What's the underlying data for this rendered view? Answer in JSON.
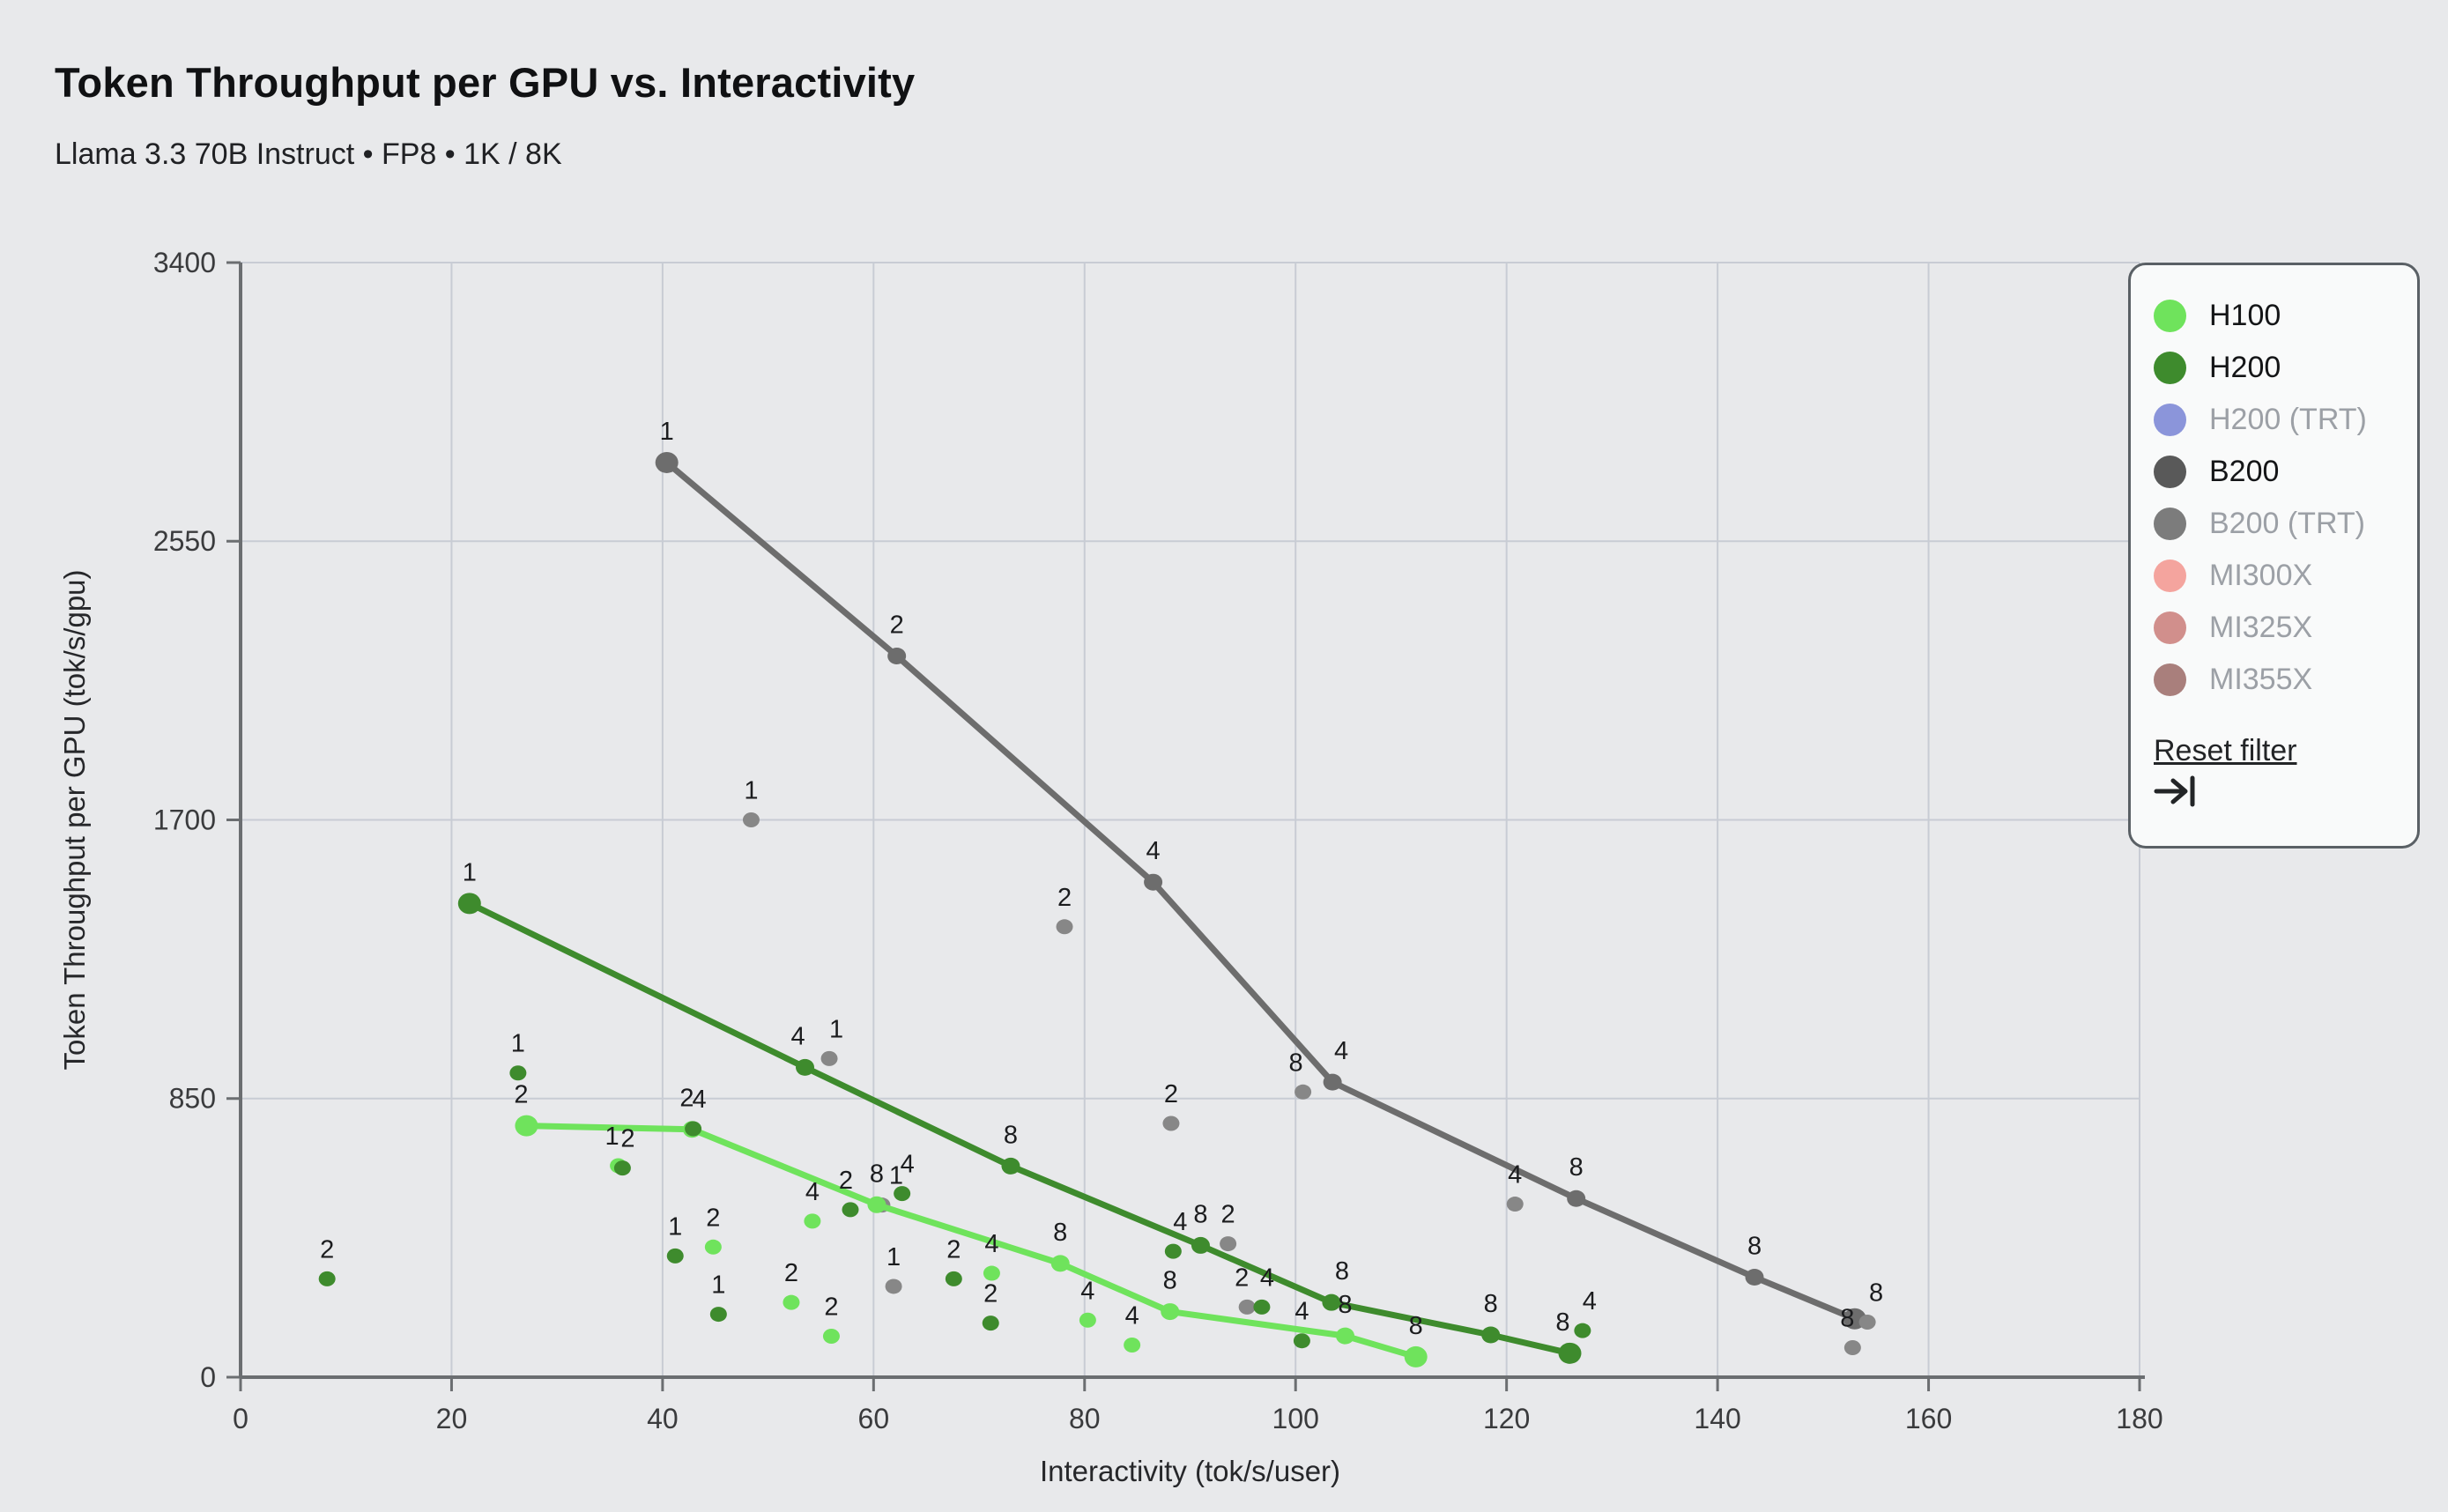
{
  "header": {
    "title": "Token Throughput per GPU vs. Interactivity",
    "subtitle": "Llama 3.3 70B Instruct • FP8 • 1K / 8K"
  },
  "legend": {
    "reset_label": "Reset filter",
    "reset_icon": "tab-arrow-right-to-bar",
    "items": [
      {
        "label": "H100",
        "color": "#6fe35c",
        "active": true
      },
      {
        "label": "H200",
        "color": "#3e8b2d",
        "active": true
      },
      {
        "label": "H200 (TRT)",
        "color": "#8b95da",
        "active": false
      },
      {
        "label": "B200",
        "color": "#595959",
        "active": true
      },
      {
        "label": "B200 (TRT)",
        "color": "#7c7c7c",
        "active": false
      },
      {
        "label": "MI300X",
        "color": "#f4a49e",
        "active": false
      },
      {
        "label": "MI325X",
        "color": "#d18f8c",
        "active": false
      },
      {
        "label": "MI355X",
        "color": "#a97f7c",
        "active": false
      }
    ]
  },
  "chart_data": {
    "type": "scatter",
    "title": "Token Throughput per GPU vs. Interactivity",
    "xlabel": "Interactivity (tok/s/user)",
    "ylabel": "Token Throughput per GPU (tok/s/gpu)",
    "xlim": [
      0,
      180
    ],
    "ylim": [
      0,
      3400
    ],
    "xticks": [
      0,
      20,
      40,
      60,
      80,
      100,
      120,
      140,
      160,
      180
    ],
    "yticks": [
      0,
      850,
      1700,
      2550,
      3400
    ],
    "grid": true,
    "legend_position": "top-right",
    "point_label_meaning": "number shown above each point (GPU count: 1, 2, 4 or 8)",
    "draw_order": [
      "B200",
      "H100",
      "H200"
    ],
    "series": [
      {
        "name": "H100",
        "color": "#6fe35c",
        "scatter_color": "#6fe35c",
        "pareto_line": [
          {
            "x": 27.1,
            "y": 767,
            "label": "2",
            "ldx": -6
          },
          {
            "x": 42.8,
            "y": 756,
            "label": "2",
            "ldx": -6
          },
          {
            "x": 60.3,
            "y": 526,
            "label": "8"
          },
          {
            "x": 77.7,
            "y": 347,
            "label": "8"
          },
          {
            "x": 88.1,
            "y": 200,
            "label": "8"
          },
          {
            "x": 104.7,
            "y": 126,
            "label": "8"
          },
          {
            "x": 111.4,
            "y": 62,
            "label": "8"
          }
        ],
        "scatter": [
          {
            "x": 35.8,
            "y": 645,
            "label": "1",
            "ldx": -7
          },
          {
            "x": 44.8,
            "y": 397,
            "label": "2"
          },
          {
            "x": 52.2,
            "y": 228,
            "label": "2"
          },
          {
            "x": 54.2,
            "y": 476,
            "label": "4"
          },
          {
            "x": 56.0,
            "y": 125,
            "label": "2"
          },
          {
            "x": 71.2,
            "y": 317,
            "label": "4"
          },
          {
            "x": 80.3,
            "y": 174,
            "label": "4"
          },
          {
            "x": 84.5,
            "y": 98,
            "label": "4"
          }
        ]
      },
      {
        "name": "H200",
        "color": "#3e8b2d",
        "scatter_color": "#3e8b2d",
        "pareto_line": [
          {
            "x": 21.7,
            "y": 1445,
            "label": "1"
          },
          {
            "x": 53.5,
            "y": 945,
            "label": "4",
            "ldx": -8
          },
          {
            "x": 73.0,
            "y": 644,
            "label": "8"
          },
          {
            "x": 91.0,
            "y": 402,
            "label": "8"
          },
          {
            "x": 103.4,
            "y": 228,
            "label": "8",
            "ldx": 12
          },
          {
            "x": 118.5,
            "y": 129,
            "label": "8"
          },
          {
            "x": 126.0,
            "y": 73,
            "label": "8",
            "ldx": -8
          }
        ],
        "scatter": [
          {
            "x": 8.2,
            "y": 300,
            "label": "2"
          },
          {
            "x": 26.3,
            "y": 928,
            "label": "1"
          },
          {
            "x": 36.2,
            "y": 638,
            "label": "2",
            "ldx": 6
          },
          {
            "x": 41.2,
            "y": 370,
            "label": "1"
          },
          {
            "x": 42.9,
            "y": 758,
            "label": "4",
            "ldx": 7
          },
          {
            "x": 45.3,
            "y": 192,
            "label": "1"
          },
          {
            "x": 57.8,
            "y": 511,
            "label": "2",
            "ldx": -5
          },
          {
            "x": 62.7,
            "y": 560,
            "label": "4",
            "ldx": 6
          },
          {
            "x": 67.6,
            "y": 300,
            "label": "2"
          },
          {
            "x": 71.1,
            "y": 165,
            "label": "2"
          },
          {
            "x": 88.4,
            "y": 384,
            "label": "4",
            "ldx": 8
          },
          {
            "x": 96.8,
            "y": 214,
            "label": "4",
            "ldx": 6
          },
          {
            "x": 100.6,
            "y": 111,
            "label": "4"
          },
          {
            "x": 127.2,
            "y": 142,
            "label": "4",
            "ldx": 8
          }
        ]
      },
      {
        "name": "B200",
        "color": "#6d6d6d",
        "scatter_color": "#878787",
        "pareto_line": [
          {
            "x": 40.4,
            "y": 2790,
            "label": "1"
          },
          {
            "x": 62.2,
            "y": 2200,
            "label": "2"
          },
          {
            "x": 86.5,
            "y": 1510,
            "label": "4"
          },
          {
            "x": 103.5,
            "y": 900,
            "label": "4",
            "ldx": 10
          },
          {
            "x": 126.6,
            "y": 545,
            "label": "8"
          },
          {
            "x": 143.5,
            "y": 305,
            "label": "8"
          },
          {
            "x": 153.0,
            "y": 178,
            "label": ""
          }
        ],
        "scatter": [
          {
            "x": 48.4,
            "y": 1700,
            "label": "1"
          },
          {
            "x": 55.8,
            "y": 972,
            "label": "1",
            "ldx": 8
          },
          {
            "x": 60.8,
            "y": 525,
            "label": "1",
            "ldx": 16
          },
          {
            "x": 61.9,
            "y": 277,
            "label": "1"
          },
          {
            "x": 78.1,
            "y": 1374,
            "label": "2"
          },
          {
            "x": 88.2,
            "y": 774,
            "label": "2"
          },
          {
            "x": 93.6,
            "y": 407,
            "label": "2"
          },
          {
            "x": 95.4,
            "y": 214,
            "label": "2",
            "ldx": -6
          },
          {
            "x": 100.7,
            "y": 870,
            "label": "8",
            "ldx": -8
          },
          {
            "x": 120.8,
            "y": 528,
            "label": "4"
          },
          {
            "x": 152.8,
            "y": 90,
            "label": "8",
            "ldx": -6
          },
          {
            "x": 154.2,
            "y": 168,
            "label": "8",
            "ldx": 10
          }
        ]
      }
    ]
  }
}
